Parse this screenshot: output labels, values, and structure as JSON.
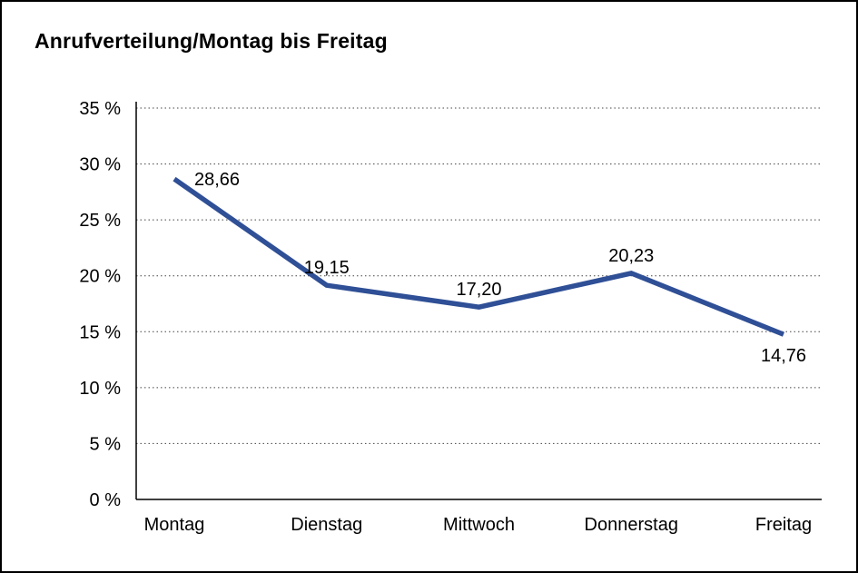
{
  "chart_data": {
    "type": "line",
    "title": "Anrufverteilung/Montag bis Freitag",
    "categories": [
      "Montag",
      "Dienstag",
      "Mittwoch",
      "Donnerstag",
      "Freitag"
    ],
    "values": [
      28.66,
      19.15,
      17.2,
      20.23,
      14.76
    ],
    "value_labels": [
      "28,66",
      "19,15",
      "17,20",
      "20,23",
      "14,76"
    ],
    "label_positions": [
      "right",
      "above",
      "above",
      "above",
      "below"
    ],
    "xlabel": "",
    "ylabel": "",
    "ylim": [
      0,
      35
    ],
    "ytick_step": 5,
    "ytick_labels": [
      "0 %",
      "5 %",
      "10 %",
      "15 %",
      "20 %",
      "25 %",
      "30 %",
      "35 %"
    ],
    "grid": "dotted-horizontal",
    "legend": "none",
    "line_color": "#2f4f96",
    "axis_color": "#000000",
    "grid_color": "#444444",
    "text_color": "#000000"
  }
}
